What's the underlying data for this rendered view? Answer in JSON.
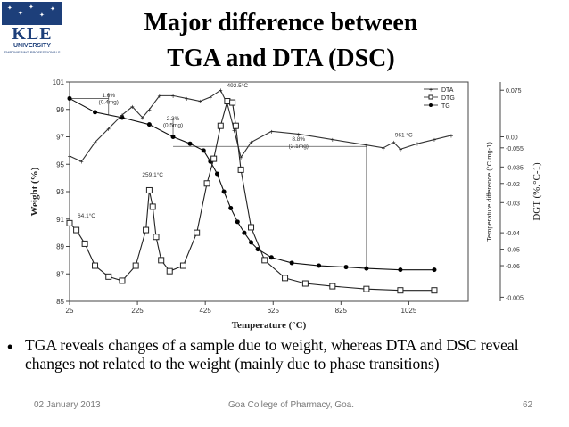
{
  "logo": {
    "brand": "KLE",
    "university": "UNIVERSITY",
    "tagline": "EMPOWERING PROFESSIONALS",
    "colors": {
      "navy": "#1d3f7a",
      "white": "#ffffff"
    }
  },
  "slide": {
    "title_line1": "Major difference between",
    "title_line2": "TGA and DTA (DSC)",
    "bullet_text": "TGA reveals changes of a sample due to weight, whereas DTA and DSC reveal changes not related to the weight (mainly due to phase transitions)"
  },
  "footer": {
    "date": "02 January 2013",
    "center": "Goa College of Pharmacy, Goa.",
    "page": "62"
  },
  "chart_data": {
    "type": "line",
    "xlabel": "Temperature (°C)",
    "ylabel_left": "Weight (%)",
    "ylabel_mid": "Temperature difference (°C.mg-1)",
    "ylabel_right": "DGT (%.°C-1)",
    "xlim": [
      25,
      1200
    ],
    "x_ticks": [
      25,
      225,
      425,
      625,
      825,
      1025
    ],
    "ylim": [
      85,
      101
    ],
    "y_ticks": [
      85,
      87,
      89,
      91,
      93,
      95,
      97,
      99,
      101
    ],
    "dtg_ylim": [
      -0.085,
      0.085
    ],
    "dtg_ticks": [
      "-0.075",
      "-0.055",
      "-0.035",
      "-0.015",
      "-0.005",
      "-0.01",
      "-0.02",
      "-0.03",
      "-0.04",
      "-0.05",
      "-0.06",
      "0.00",
      "-0.005"
    ],
    "right_ticks": [
      {
        "label": "0.075",
        "w": 100.4
      },
      {
        "label": "0.00",
        "w": 97.0
      },
      {
        "label": "-0.055",
        "w": 96.2
      },
      {
        "label": "-0.035",
        "w": 94.8
      },
      {
        "label": "-0.02",
        "w": 93.6
      },
      {
        "label": "-0.03",
        "w": 92.2
      },
      {
        "label": "-0.04",
        "w": 90.0
      },
      {
        "label": "-0.05",
        "w": 88.8
      },
      {
        "label": "-0.06",
        "w": 87.6
      },
      {
        "label": "-0.005",
        "w": 85.3
      }
    ],
    "legend": [
      "DTA",
      "DTG",
      "TG"
    ],
    "legend_position": "top-right",
    "series": [
      {
        "name": "TG",
        "marker": "filled-circle",
        "x": [
          25,
          100,
          180,
          260,
          330,
          380,
          420,
          440,
          460,
          480,
          500,
          520,
          540,
          560,
          580,
          620,
          680,
          760,
          840,
          900,
          1000,
          1100
        ],
        "y": [
          99.8,
          98.8,
          98.4,
          97.9,
          97.0,
          96.5,
          96.0,
          95.2,
          94.3,
          93.0,
          91.8,
          90.8,
          90.0,
          89.3,
          88.8,
          88.2,
          87.8,
          87.6,
          87.5,
          87.4,
          87.3,
          87.3
        ]
      },
      {
        "name": "DTA",
        "marker": "plus",
        "x": [
          25,
          60,
          100,
          140,
          180,
          210,
          240,
          260,
          290,
          330,
          370,
          410,
          440,
          470,
          490,
          510,
          530,
          560,
          620,
          700,
          800,
          900,
          950,
          980,
          1000,
          1050,
          1100,
          1150
        ],
        "y": [
          95.6,
          95.2,
          96.6,
          97.6,
          98.6,
          99.2,
          98.4,
          99.0,
          100.0,
          100.0,
          99.8,
          99.6,
          99.9,
          100.4,
          99.4,
          97.5,
          95.5,
          96.6,
          97.4,
          97.2,
          96.8,
          96.4,
          96.2,
          96.6,
          96.1,
          96.5,
          96.8,
          97.1
        ]
      },
      {
        "name": "DTG",
        "marker": "open-square",
        "x": [
          25,
          45,
          70,
          100,
          140,
          180,
          220,
          250,
          260,
          270,
          280,
          295,
          320,
          360,
          400,
          430,
          450,
          470,
          490,
          505,
          515,
          530,
          560,
          600,
          660,
          720,
          800,
          900,
          1000,
          1100
        ],
        "y": [
          90.7,
          90.2,
          89.2,
          87.6,
          86.8,
          86.5,
          87.6,
          90.2,
          93.1,
          91.9,
          89.7,
          88.0,
          87.2,
          87.6,
          90.0,
          93.6,
          95.4,
          97.8,
          99.6,
          99.5,
          97.8,
          94.6,
          90.4,
          88.0,
          86.7,
          86.3,
          86.1,
          85.9,
          85.8,
          85.8
        ]
      }
    ],
    "annotations": [
      {
        "text": "1.6%",
        "x": 140,
        "y": 99.9
      },
      {
        "text": "(0.4mg)",
        "x": 140,
        "y": 99.4
      },
      {
        "text": "2.2%",
        "x": 330,
        "y": 98.2
      },
      {
        "text": "(0.5mg)",
        "x": 330,
        "y": 97.7
      },
      {
        "text": "8.8%",
        "x": 700,
        "y": 96.7
      },
      {
        "text": "(2.1mg)",
        "x": 700,
        "y": 96.2
      },
      {
        "text": "961 °C",
        "x": 1010,
        "y": 97.0
      },
      {
        "text": "492.5°C",
        "x": 520,
        "y": 100.6
      },
      {
        "text": "259.1°C",
        "x": 270,
        "y": 94.1
      },
      {
        "text": "64.1°C",
        "x": 75,
        "y": 91.1
      }
    ],
    "grid": false
  }
}
